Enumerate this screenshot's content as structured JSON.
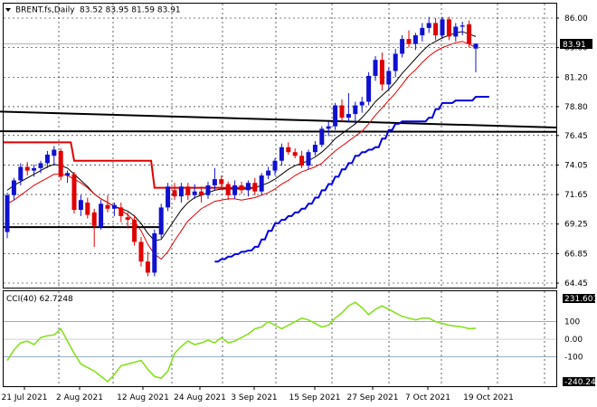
{
  "header": {
    "symbol_label": "BRENT.fs,Daily",
    "ohlc_label": "83.52 83.95 81.59 83.91",
    "menu_icon": "triangle-down-icon"
  },
  "price_tag": {
    "value": "83.91"
  },
  "cci_header": {
    "label": "CCI(40) 62.7248"
  },
  "cci_tags": {
    "top": "231.601",
    "bottom": "-240.240"
  },
  "colors": {
    "bull": "#1010d0",
    "bear": "#e00000",
    "ma_fast": "#000000",
    "ma_slow": "#e00000",
    "support": "#0000e0",
    "resistance": "#e00000",
    "trend": "#000000",
    "cci_line": "#88e020",
    "cci_level": "#7090b0",
    "grid": "#000000"
  },
  "chart_data": [
    {
      "type": "candlestick",
      "title": "BRENT.fs,Daily",
      "y_tick_labels": [
        "86.00",
        "83.60",
        "81.20",
        "78.80",
        "76.45",
        "74.05",
        "71.65",
        "69.25",
        "66.85",
        "64.45"
      ],
      "ylim": [
        64.45,
        86.7
      ],
      "x_tick_labels": [
        "21 Jul 2021",
        "2 Aug 2021",
        "12 Aug 2021",
        "24 Aug 2021",
        "3 Sep 2021",
        "15 Sep 2021",
        "27 Sep 2021",
        "7 Oct 2021",
        "19 Oct 2021"
      ],
      "last_price": 83.91,
      "candles": [
        [
          68.6,
          71.8,
          68.1,
          71.6
        ],
        [
          71.6,
          73.0,
          71.2,
          72.8
        ],
        [
          72.8,
          74.2,
          72.4,
          73.9
        ],
        [
          73.9,
          74.3,
          73.2,
          73.6
        ],
        [
          73.6,
          74.1,
          73.1,
          73.8
        ],
        [
          73.8,
          74.4,
          73.4,
          74.2
        ],
        [
          74.2,
          75.2,
          73.8,
          74.9
        ],
        [
          74.8,
          75.6,
          74.0,
          75.3
        ],
        [
          75.2,
          75.4,
          72.8,
          73.1
        ],
        [
          73.2,
          73.6,
          72.6,
          73.4
        ],
        [
          73.3,
          73.5,
          70.1,
          70.4
        ],
        [
          70.4,
          71.6,
          69.9,
          71.2
        ],
        [
          71.0,
          71.4,
          69.7,
          70.0
        ],
        [
          70.2,
          70.5,
          67.4,
          69.1
        ],
        [
          69.0,
          71.2,
          68.8,
          70.9
        ],
        [
          70.8,
          71.6,
          70.2,
          70.5
        ],
        [
          70.5,
          71.0,
          69.9,
          70.8
        ],
        [
          70.6,
          71.0,
          69.4,
          69.9
        ],
        [
          69.8,
          70.2,
          68.9,
          69.6
        ],
        [
          69.6,
          70.0,
          67.5,
          67.8
        ],
        [
          67.8,
          68.2,
          65.8,
          66.2
        ],
        [
          66.2,
          67.0,
          65.0,
          65.3
        ],
        [
          65.3,
          68.8,
          65.0,
          68.5
        ],
        [
          68.4,
          70.9,
          68.1,
          70.6
        ],
        [
          70.6,
          72.6,
          70.3,
          72.3
        ],
        [
          72.0,
          72.6,
          71.2,
          71.5
        ],
        [
          71.5,
          72.6,
          71.0,
          72.3
        ],
        [
          72.3,
          72.6,
          71.2,
          71.6
        ],
        [
          71.6,
          72.5,
          71.3,
          71.9
        ],
        [
          71.9,
          72.3,
          71.0,
          71.6
        ],
        [
          71.6,
          72.7,
          71.3,
          72.4
        ],
        [
          72.4,
          73.8,
          72.0,
          72.9
        ],
        [
          72.9,
          73.2,
          72.1,
          72.5
        ],
        [
          72.5,
          72.7,
          71.2,
          71.6
        ],
        [
          71.6,
          72.8,
          71.3,
          72.4
        ],
        [
          72.4,
          72.7,
          71.7,
          72.0
        ],
        [
          72.0,
          72.8,
          71.5,
          72.6
        ],
        [
          72.6,
          73.0,
          71.6,
          71.9
        ],
        [
          71.9,
          73.4,
          71.6,
          73.2
        ],
        [
          73.2,
          73.9,
          72.9,
          73.6
        ],
        [
          73.6,
          74.6,
          73.2,
          74.4
        ],
        [
          74.4,
          75.8,
          74.0,
          75.5
        ],
        [
          75.5,
          75.9,
          74.9,
          75.1
        ],
        [
          75.1,
          75.4,
          74.6,
          74.8
        ],
        [
          74.8,
          75.2,
          73.8,
          74.0
        ],
        [
          74.0,
          75.3,
          73.7,
          75.1
        ],
        [
          75.1,
          76.0,
          74.8,
          75.7
        ],
        [
          75.7,
          77.2,
          75.5,
          77.0
        ],
        [
          77.0,
          77.6,
          76.4,
          77.2
        ],
        [
          77.2,
          79.1,
          76.9,
          78.9
        ],
        [
          78.9,
          79.4,
          77.6,
          77.9
        ],
        [
          77.9,
          79.9,
          77.5,
          78.2
        ],
        [
          78.2,
          79.2,
          77.4,
          78.9
        ],
        [
          78.9,
          79.6,
          78.3,
          79.2
        ],
        [
          79.2,
          81.6,
          78.9,
          81.3
        ],
        [
          81.3,
          82.9,
          80.9,
          82.6
        ],
        [
          82.6,
          83.2,
          80.1,
          80.6
        ],
        [
          80.6,
          82.0,
          80.2,
          81.7
        ],
        [
          81.7,
          83.5,
          81.2,
          83.1
        ],
        [
          83.1,
          84.6,
          82.8,
          84.3
        ],
        [
          84.3,
          85.0,
          83.6,
          83.9
        ],
        [
          83.9,
          84.8,
          83.4,
          84.6
        ],
        [
          84.6,
          85.6,
          84.1,
          85.2
        ],
        [
          85.2,
          86.1,
          84.8,
          85.6
        ],
        [
          85.6,
          86.0,
          84.2,
          84.6
        ],
        [
          84.6,
          86.1,
          84.3,
          85.9
        ],
        [
          85.9,
          86.1,
          84.2,
          84.5
        ],
        [
          84.5,
          85.6,
          84.1,
          85.3
        ],
        [
          85.3,
          85.7,
          84.6,
          85.4
        ],
        [
          85.5,
          85.8,
          83.6,
          83.9
        ],
        [
          83.52,
          83.95,
          81.59,
          83.91
        ]
      ],
      "series": [
        {
          "name": "",
          "color_key": "ma_fast",
          "values": [
            72.0,
            72.4,
            72.7,
            73.0,
            73.3,
            73.6,
            73.9,
            74.1,
            74.0,
            73.8,
            73.3,
            72.8,
            72.3,
            71.7,
            71.3,
            71.0,
            70.7,
            70.5,
            70.3,
            69.9,
            69.3,
            68.5,
            67.9,
            68.0,
            68.8,
            69.6,
            70.4,
            71.0,
            71.4,
            71.6,
            71.8,
            72.0,
            72.1,
            72.1,
            72.1,
            72.1,
            72.1,
            72.2,
            72.4,
            72.6,
            72.9,
            73.3,
            73.7,
            74.0,
            74.2,
            74.4,
            74.7,
            75.1,
            75.6,
            76.2,
            76.6,
            77.0,
            77.4,
            77.9,
            78.5,
            79.2,
            79.7,
            80.2,
            80.8,
            81.5,
            82.1,
            82.7,
            83.3,
            83.8,
            84.1,
            84.4,
            84.6,
            84.8,
            84.9,
            84.7,
            84.5
          ]
        },
        {
          "name": "",
          "color_key": "ma_slow",
          "values": [
            70.9,
            71.2,
            71.6,
            72.0,
            72.4,
            72.7,
            73.0,
            73.3,
            73.3,
            73.2,
            72.9,
            72.6,
            72.2,
            71.7,
            71.3,
            71.0,
            70.7,
            70.4,
            70.0,
            69.5,
            68.7,
            67.6,
            66.8,
            66.4,
            67.0,
            67.9,
            68.7,
            69.5,
            70.0,
            70.5,
            70.8,
            71.1,
            71.2,
            71.3,
            71.3,
            71.2,
            71.3,
            71.4,
            71.6,
            71.8,
            72.1,
            72.5,
            72.8,
            73.2,
            73.5,
            73.7,
            73.9,
            74.2,
            74.7,
            75.2,
            75.6,
            76.0,
            76.4,
            76.8,
            77.4,
            78.1,
            78.7,
            79.3,
            79.9,
            80.6,
            81.3,
            81.8,
            82.4,
            82.9,
            83.3,
            83.6,
            83.8,
            84.0,
            84.1,
            83.9,
            83.6
          ]
        },
        {
          "name": "",
          "color_key": "resistance",
          "start_index": 0,
          "values": [
            75.9,
            75.9,
            75.9,
            75.9,
            75.9,
            75.9,
            75.9,
            75.9,
            75.9,
            75.9,
            74.4,
            74.4,
            74.4,
            74.4,
            74.4,
            74.4,
            74.4,
            74.4,
            74.4,
            74.4,
            74.4,
            74.4,
            72.2,
            72.2,
            72.2,
            72.2,
            72.2,
            72.2,
            72.2,
            72.2,
            72.2,
            72.2,
            72.2,
            72.2,
            72.2,
            72.2,
            72.2,
            72.2
          ]
        },
        {
          "name": "",
          "color_key": "support",
          "start_index": 31,
          "values": [
            66.2,
            66.4,
            66.6,
            66.8,
            67.0,
            67.1,
            67.4,
            68.0,
            68.7,
            69.3,
            69.6,
            69.9,
            70.2,
            70.5,
            70.9,
            71.4,
            72.0,
            72.5,
            73.1,
            73.7,
            74.2,
            74.8,
            75.1,
            75.3,
            75.5,
            76.2,
            76.9,
            77.4,
            77.6,
            77.6,
            77.6,
            77.6,
            77.9,
            78.6,
            79.1,
            79.1,
            79.3,
            79.3,
            79.3,
            79.6,
            79.6,
            79.6
          ]
        },
        {
          "name": "",
          "color_key": "trend",
          "start_index": 0,
          "values": [
            69.0,
            69.0,
            69.0,
            69.0,
            69.0,
            69.0,
            69.0,
            69.0,
            69.0,
            69.0,
            69.0,
            69.0,
            69.0,
            69.0,
            69.0,
            69.0,
            69.0,
            69.0,
            69.0,
            69.0,
            69.0,
            69.0,
            69.0,
            69.0
          ]
        }
      ],
      "lines": [
        {
          "from": [
            0,
            78.4
          ],
          "to": [
            78,
            77.1
          ],
          "color_key": "trend"
        },
        {
          "from": [
            0,
            76.8
          ],
          "to": [
            78,
            76.75
          ],
          "color_key": "trend"
        }
      ]
    },
    {
      "type": "line",
      "title": "CCI(40) 62.7248",
      "y_tick_labels": [
        "231.601",
        "100",
        "0.00",
        "-100",
        "-240.240"
      ],
      "ylim": [
        -240.24,
        231.601
      ],
      "levels": [
        100,
        -100
      ],
      "series": [
        {
          "name": "",
          "color_key": "cci_line",
          "values": [
            -120,
            -60,
            -20,
            -10,
            -30,
            10,
            20,
            25,
            60,
            -10,
            -80,
            -140,
            -160,
            -180,
            -210,
            -240,
            -200,
            -150,
            -140,
            -130,
            -120,
            -170,
            -210,
            -220,
            -180,
            -80,
            -40,
            -10,
            -30,
            -20,
            -5,
            -20,
            10,
            -20,
            -10,
            10,
            30,
            60,
            70,
            100,
            80,
            60,
            80,
            100,
            120,
            110,
            90,
            70,
            80,
            120,
            150,
            190,
            210,
            180,
            140,
            170,
            190,
            170,
            150,
            130,
            120,
            110,
            120,
            120,
            100,
            90,
            80,
            75,
            70,
            60,
            62.72
          ]
        }
      ]
    }
  ],
  "date_axis": [
    "21 Jul 2021",
    "2 Aug 2021",
    "12 Aug 2021",
    "24 Aug 2021",
    "3 Sep 2021",
    "15 Sep 2021",
    "27 Sep 2021",
    "7 Oct 2021",
    "19 Oct 2021"
  ]
}
